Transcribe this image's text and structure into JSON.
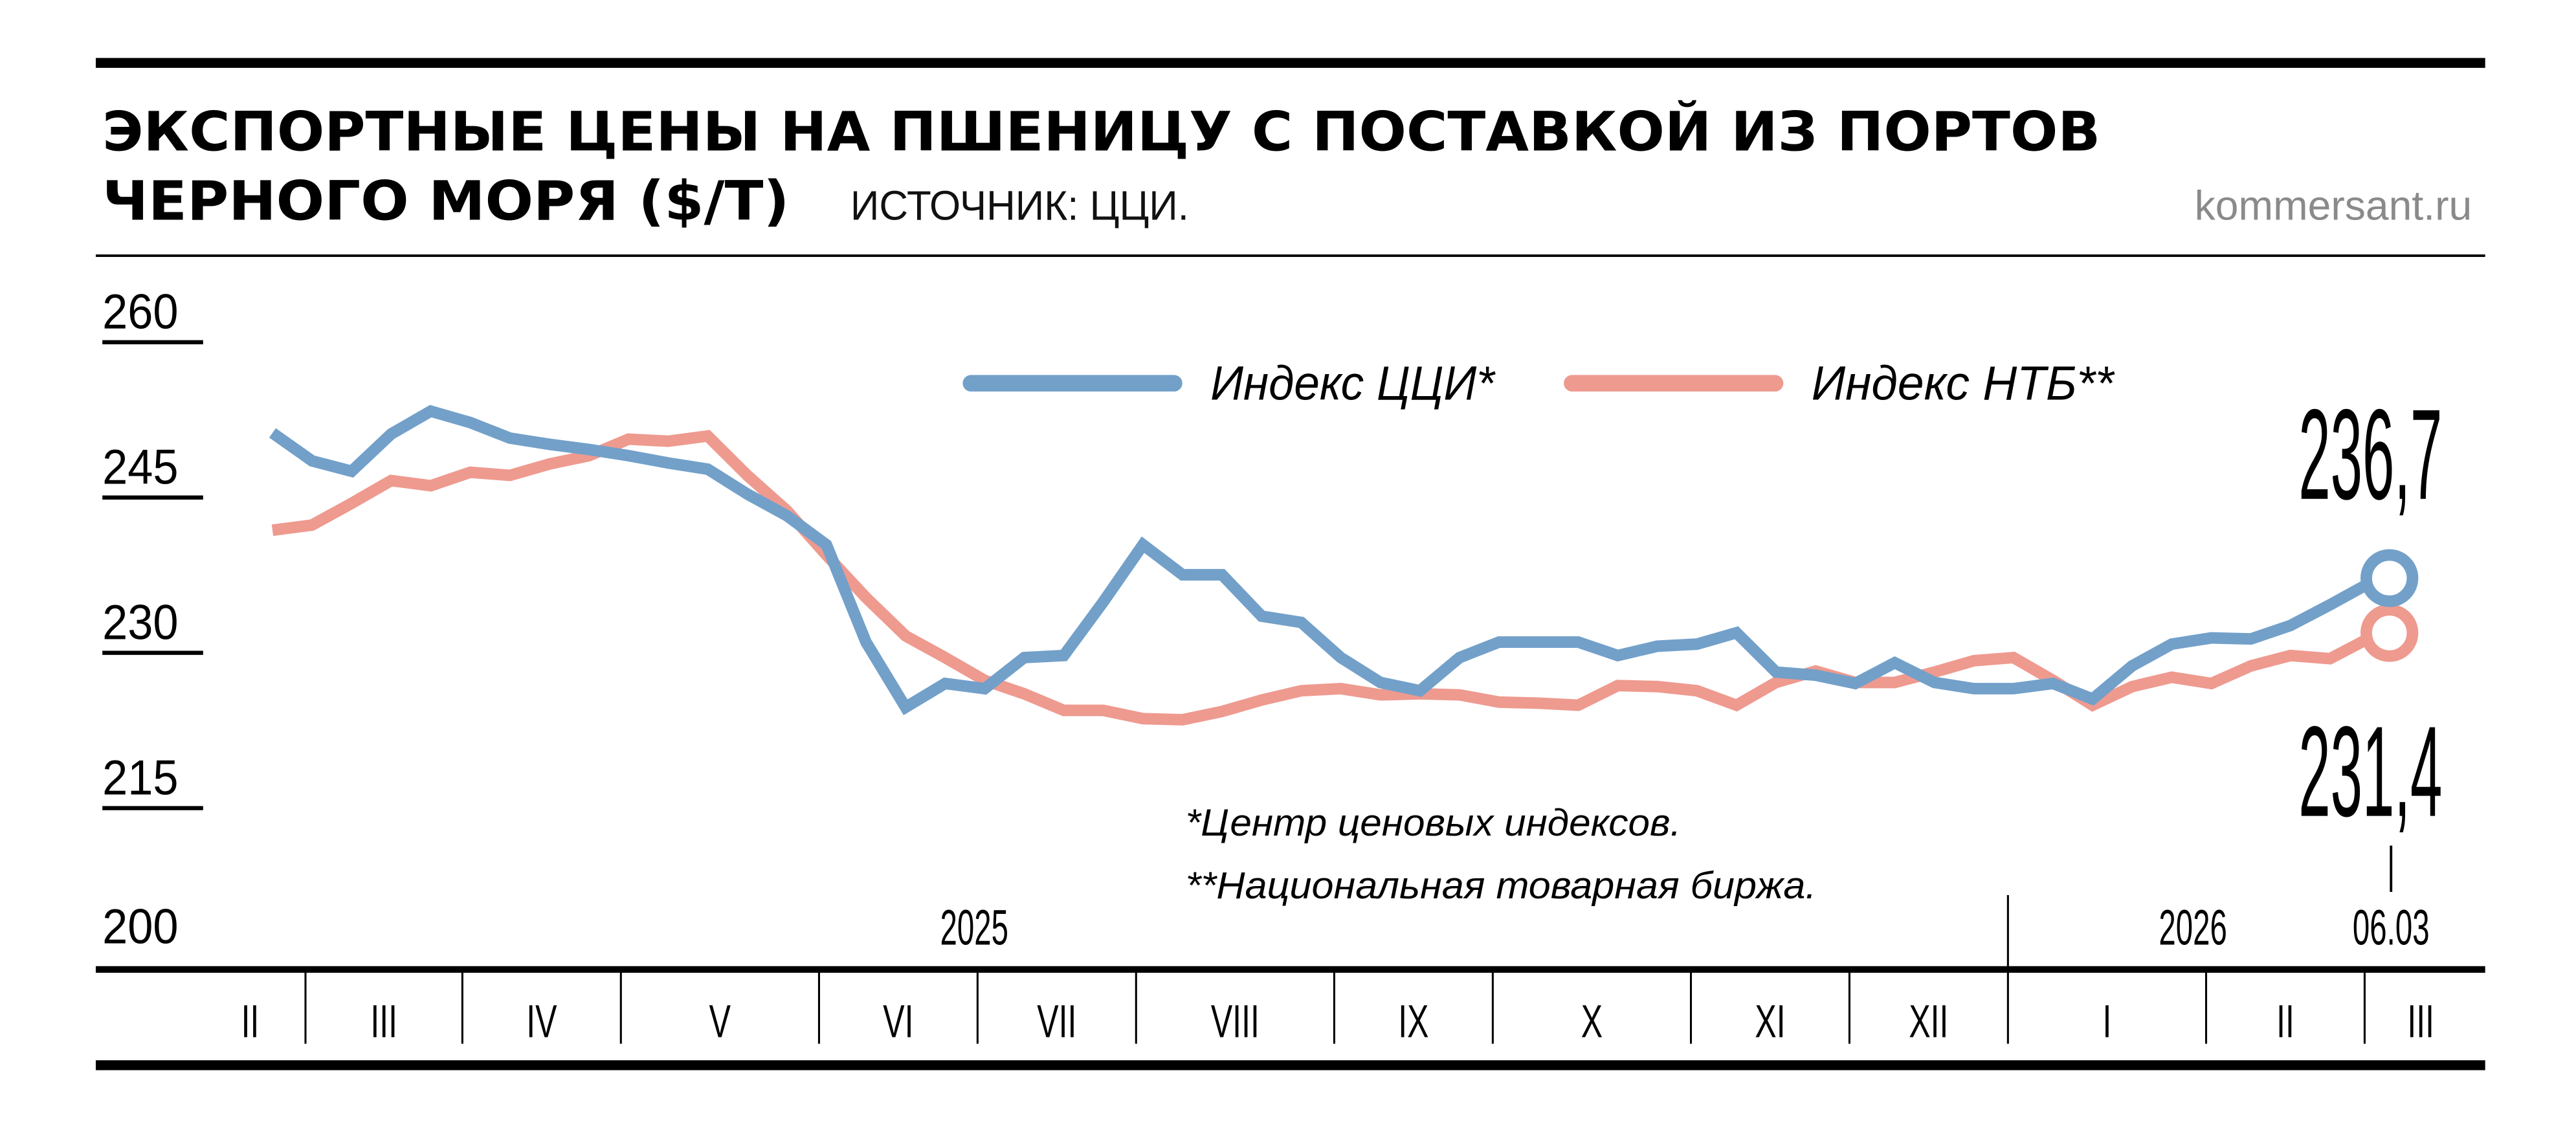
{
  "header": {
    "title_line1": "ЭКСПОРТНЫЕ ЦЕНЫ НА ПШЕНИЦУ С ПОСТАВКОЙ ИЗ ПОРТОВ",
    "title_line2": "ЧЕРНОГО МОРЯ ($/Т)",
    "source": "ИСТОЧНИК: ЦЦИ.",
    "site": "kommersant.ru"
  },
  "footnotes": [
    "*Центр ценовых индексов.",
    "**Национальная товарная биржа."
  ],
  "chart_data": {
    "type": "line",
    "title": "Экспортные цены на пшеницу с поставкой из портов Черного моря ($/т)",
    "ylabel": "$/т",
    "ylim": [
      200,
      260
    ],
    "yticks": [
      "260",
      "245",
      "230",
      "215",
      "200"
    ],
    "ytick_values": [
      260,
      245,
      230,
      215,
      200
    ],
    "years": [
      {
        "label": "2025",
        "after_month_index": 0
      },
      {
        "label": "2026",
        "after_month_index": 11
      }
    ],
    "last_date": "06.03",
    "months": [
      "II",
      "III",
      "IV",
      "V",
      "VI",
      "VII",
      "VIII",
      "IX",
      "X",
      "XI",
      "XII",
      "I",
      "II",
      "III"
    ],
    "legend_position": "top-center",
    "series": [
      {
        "name": "Индекс ЦЦИ*",
        "color": "#72a0c9",
        "last_label": "236,7",
        "values": [
          251.2,
          248.5,
          247.5,
          251.1,
          253.3,
          252.2,
          250.7,
          250.1,
          249.6,
          249.0,
          248.3,
          247.7,
          245.3,
          243.2,
          240.4,
          231.0,
          224.7,
          227.0,
          226.5,
          229.5,
          229.7,
          234.9,
          240.4,
          237.5,
          237.5,
          233.5,
          232.9,
          229.5,
          227.1,
          226.3,
          229.5,
          231.0,
          231.0,
          231.0,
          229.7,
          230.6,
          230.8,
          231.9,
          228.1,
          227.8,
          227.0,
          229.0,
          227.1,
          226.5,
          226.5,
          227.0,
          225.5,
          228.7,
          230.8,
          231.4,
          231.3,
          232.6,
          234.6,
          236.7
        ]
      },
      {
        "name": "Индекс НТБ**",
        "color": "#ee9a8f",
        "last_label": "231,4",
        "values": [
          241.8,
          242.3,
          244.4,
          246.6,
          246.1,
          247.4,
          247.1,
          248.2,
          249.0,
          250.6,
          250.4,
          250.9,
          247.1,
          243.7,
          239.4,
          235.3,
          231.6,
          229.5,
          227.3,
          226.0,
          224.4,
          224.4,
          223.6,
          223.5,
          224.3,
          225.4,
          226.3,
          226.5,
          225.9,
          226.0,
          225.9,
          225.2,
          225.1,
          224.9,
          226.8,
          226.7,
          226.3,
          224.9,
          227.1,
          228.2,
          227.1,
          227.1,
          228.1,
          229.2,
          229.5,
          227.3,
          224.9,
          226.7,
          227.6,
          227.0,
          228.7,
          229.7,
          229.4,
          231.4
        ]
      }
    ]
  }
}
